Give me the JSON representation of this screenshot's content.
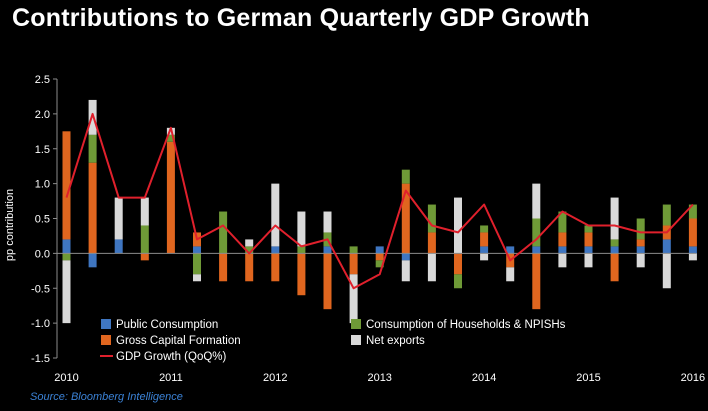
{
  "title": "Contributions to German Quarterly GDP Growth",
  "source": "Source: Bloomberg Intelligence",
  "colors": {
    "public": "#3f76c1",
    "gcf": "#e0661f",
    "households": "#6f9a37",
    "netexports": "#d9d9d9",
    "gdp": "#e0202c",
    "axis": "#8c8c8c"
  },
  "chart_data": {
    "type": "bar",
    "stacked": true,
    "ylabel": "pp contribution",
    "ylim": [
      -1.5,
      2.5
    ],
    "yticks": [
      "2.5",
      "2.0",
      "1.5",
      "1.0",
      "0.5",
      "0.0",
      "-0.5",
      "-1.0",
      "-1.5"
    ],
    "ytick_values": [
      2.5,
      2.0,
      1.5,
      1.0,
      0.5,
      0.0,
      -0.5,
      -1.0,
      -1.5
    ],
    "x_year_labels": [
      "2010",
      "2011",
      "2012",
      "2013",
      "2014",
      "2015",
      "2016"
    ],
    "categories": [
      "2010Q1",
      "2010Q2",
      "2010Q3",
      "2010Q4",
      "2011Q1",
      "2011Q2",
      "2011Q3",
      "2011Q4",
      "2012Q1",
      "2012Q2",
      "2012Q3",
      "2012Q4",
      "2013Q1",
      "2013Q2",
      "2013Q3",
      "2013Q4",
      "2014Q1",
      "2014Q2",
      "2014Q3",
      "2014Q4",
      "2015Q1",
      "2015Q2",
      "2015Q3",
      "2015Q4",
      "2016Q1"
    ],
    "legend_position": "bottom-inside",
    "grid": false,
    "series": [
      {
        "name": "Public Consumption",
        "key": "public",
        "values": [
          0.2,
          -0.2,
          0.2,
          0.0,
          0.0,
          0.1,
          0.0,
          0.0,
          0.1,
          0.0,
          0.1,
          0.0,
          0.1,
          -0.1,
          0.0,
          0.0,
          0.1,
          0.1,
          0.1,
          0.1,
          0.1,
          0.1,
          0.1,
          0.2,
          0.1
        ]
      },
      {
        "name": "Gross Capital Formation",
        "key": "gcf",
        "values": [
          1.55,
          1.3,
          0.0,
          -0.1,
          1.6,
          0.2,
          -0.4,
          -0.4,
          -0.4,
          -0.6,
          -0.8,
          -0.3,
          -0.1,
          1.0,
          0.3,
          -0.3,
          0.2,
          -0.2,
          -0.8,
          0.2,
          0.2,
          -0.4,
          0.1,
          0.2,
          0.4
        ]
      },
      {
        "name": "Consumption of Households & NPISHs",
        "key": "households",
        "values": [
          -0.1,
          0.4,
          0.0,
          0.4,
          0.1,
          -0.3,
          0.6,
          0.1,
          0.0,
          0.1,
          0.2,
          0.1,
          -0.1,
          0.2,
          0.4,
          -0.2,
          0.1,
          0.0,
          0.4,
          0.3,
          0.1,
          0.1,
          0.3,
          0.3,
          0.2
        ]
      },
      {
        "name": "Net exports",
        "key": "netexports",
        "values": [
          -0.9,
          0.5,
          0.6,
          0.4,
          0.1,
          -0.1,
          0.0,
          0.1,
          0.9,
          0.5,
          0.3,
          -0.7,
          0.0,
          -0.3,
          -0.4,
          0.8,
          -0.1,
          -0.2,
          0.5,
          -0.2,
          -0.2,
          0.6,
          -0.2,
          -0.5,
          -0.1
        ]
      },
      {
        "name": "GDP Growth (QoQ%)",
        "key": "gdp",
        "type": "line",
        "values": [
          0.8,
          2.0,
          0.8,
          0.8,
          1.8,
          0.2,
          0.4,
          0.0,
          0.4,
          0.1,
          0.2,
          -0.5,
          -0.3,
          0.9,
          0.4,
          0.3,
          0.7,
          -0.1,
          0.2,
          0.6,
          0.4,
          0.4,
          0.3,
          0.3,
          0.7
        ]
      }
    ]
  },
  "legend": [
    {
      "key": "public",
      "label": "Public Consumption"
    },
    {
      "key": "households",
      "label": "Consumption of Households & NPISHs"
    },
    {
      "key": "gcf",
      "label": "Gross Capital Formation"
    },
    {
      "key": "netexports",
      "label": "Net exports"
    },
    {
      "key": "gdp",
      "label": "GDP Growth (QoQ%)"
    }
  ]
}
